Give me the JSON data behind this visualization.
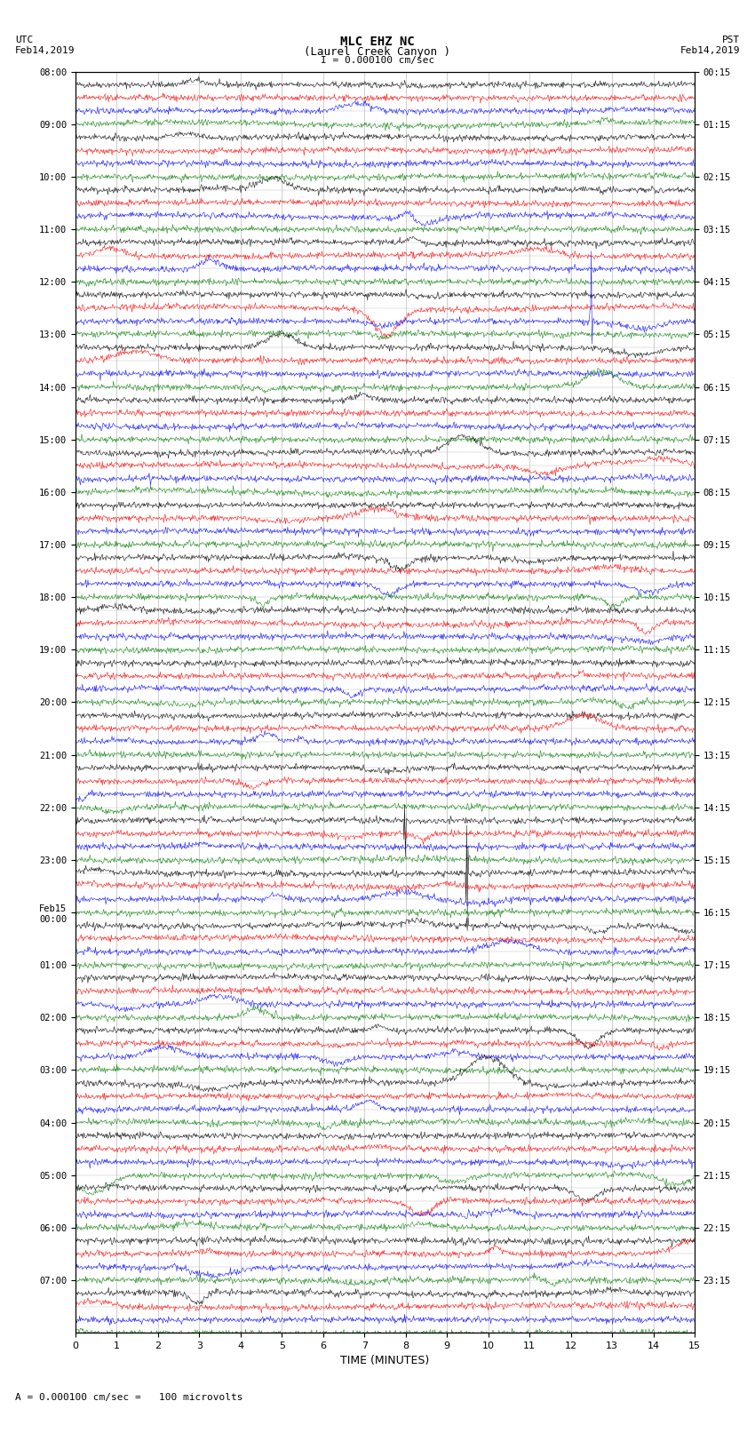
{
  "title_line1": "MLC EHZ NC",
  "title_line2": "(Laurel Creek Canyon )",
  "scale_label": "I = 0.000100 cm/sec",
  "left_header": "UTC\nFeb14,2019",
  "right_header": "PST\nFeb14,2019",
  "footer_label": "= 0.000100 cm/sec =   100 microvolts",
  "xlabel": "TIME (MINUTES)",
  "utc_times": [
    "08:00",
    "",
    "",
    "",
    "09:00",
    "",
    "",
    "",
    "10:00",
    "",
    "",
    "",
    "11:00",
    "",
    "",
    "",
    "12:00",
    "",
    "",
    "",
    "13:00",
    "",
    "",
    "",
    "14:00",
    "",
    "",
    "",
    "15:00",
    "",
    "",
    "",
    "16:00",
    "",
    "",
    "",
    "17:00",
    "",
    "",
    "",
    "18:00",
    "",
    "",
    "",
    "19:00",
    "",
    "",
    "",
    "20:00",
    "",
    "",
    "",
    "21:00",
    "",
    "",
    "",
    "22:00",
    "",
    "",
    "",
    "23:00",
    "",
    "",
    "",
    "Feb15\n00:00",
    "",
    "",
    "",
    "01:00",
    "",
    "",
    "",
    "02:00",
    "",
    "",
    "",
    "03:00",
    "",
    "",
    "",
    "04:00",
    "",
    "",
    "",
    "05:00",
    "",
    "",
    "",
    "06:00",
    "",
    "",
    "",
    "07:00",
    "",
    "",
    ""
  ],
  "pst_times": [
    "00:15",
    "",
    "",
    "",
    "01:15",
    "",
    "",
    "",
    "02:15",
    "",
    "",
    "",
    "03:15",
    "",
    "",
    "",
    "04:15",
    "",
    "",
    "",
    "05:15",
    "",
    "",
    "",
    "06:15",
    "",
    "",
    "",
    "07:15",
    "",
    "",
    "",
    "08:15",
    "",
    "",
    "",
    "09:15",
    "",
    "",
    "",
    "10:15",
    "",
    "",
    "",
    "11:15",
    "",
    "",
    "",
    "12:15",
    "",
    "",
    "",
    "13:15",
    "",
    "",
    "",
    "14:15",
    "",
    "",
    "",
    "15:15",
    "",
    "",
    "",
    "16:15",
    "",
    "",
    "",
    "17:15",
    "",
    "",
    "",
    "18:15",
    "",
    "",
    "",
    "19:15",
    "",
    "",
    "",
    "20:15",
    "",
    "",
    "",
    "21:15",
    "",
    "",
    "",
    "22:15",
    "",
    "",
    "",
    "23:15",
    "",
    "",
    ""
  ],
  "num_rows": 96,
  "minutes_per_row": 15,
  "colors_cycle": [
    "black",
    "red",
    "blue",
    "green"
  ],
  "bg_color": "white",
  "line_color": "#cccccc",
  "seed": 42,
  "num_xticks": 16,
  "xlim": [
    0,
    15
  ],
  "amplitude_base": 0.03,
  "amplitude_scale": 0.12
}
